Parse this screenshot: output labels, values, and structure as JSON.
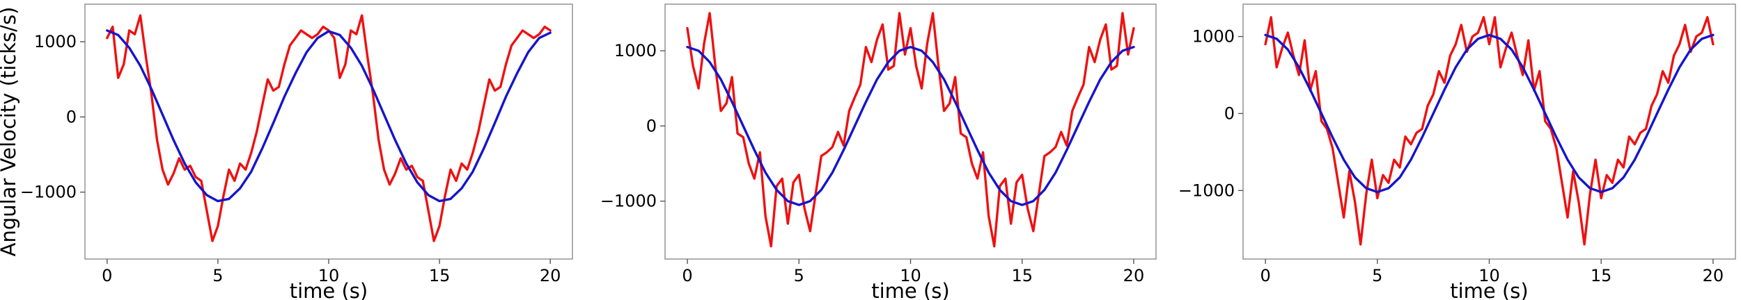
{
  "chart_data": [
    {
      "type": "line",
      "title": "",
      "xlabel": "time (s)",
      "ylabel": "Angular Velocity (ticks/s)",
      "xlim": [
        -1,
        21
      ],
      "ylim": [
        -1890,
        1500
      ],
      "xticks": [
        0,
        5,
        10,
        15,
        20
      ],
      "xtick_labels": [
        "0",
        "5",
        "10",
        "15",
        "20"
      ],
      "yticks": [
        1000,
        0,
        -1000
      ],
      "ytick_labels": [
        "1000",
        "0",
        "−1000"
      ],
      "grid": false,
      "series": [
        {
          "color": "#ee1111",
          "x": [
            0.0,
            0.25,
            0.5,
            0.75,
            1.0,
            1.25,
            1.5,
            1.75,
            2.0,
            2.25,
            2.5,
            2.75,
            3.0,
            3.25,
            3.5,
            3.75,
            4.0,
            4.25,
            4.5,
            4.75,
            5.0,
            5.25,
            5.5,
            5.75,
            6.0,
            6.25,
            6.5,
            6.75,
            7.0,
            7.25,
            7.5,
            7.75,
            8.0,
            8.25,
            8.5,
            8.75,
            9.0,
            9.25,
            9.5,
            9.75,
            10.0,
            10.25,
            10.5,
            10.75,
            11.0,
            11.25,
            11.5,
            11.75,
            12.0,
            12.25,
            12.5,
            12.75,
            13.0,
            13.25,
            13.5,
            13.75,
            14.0,
            14.25,
            14.5,
            14.75,
            15.0,
            15.25,
            15.5,
            15.75,
            16.0,
            16.25,
            16.5,
            16.75,
            17.0,
            17.25,
            17.5,
            17.75,
            18.0,
            18.25,
            18.5,
            18.75,
            19.0,
            19.25,
            19.5,
            19.75,
            20.0
          ],
          "y": [
            1050,
            1200,
            520,
            700,
            1150,
            1100,
            1350,
            800,
            300,
            -300,
            -700,
            -900,
            -750,
            -550,
            -700,
            -650,
            -800,
            -850,
            -1250,
            -1650,
            -1450,
            -1050,
            -700,
            -850,
            -620,
            -700,
            -480,
            -200,
            150,
            500,
            350,
            400,
            700,
            950,
            1050,
            1150,
            1100,
            1050,
            1100,
            1200,
            1150,
            1050,
            520,
            700,
            1150,
            1100,
            1350,
            800,
            300,
            -300,
            -700,
            -900,
            -750,
            -550,
            -700,
            -650,
            -800,
            -850,
            -1250,
            -1650,
            -1450,
            -1050,
            -700,
            -850,
            -620,
            -700,
            -480,
            -200,
            150,
            500,
            350,
            400,
            700,
            950,
            1050,
            1150,
            1100,
            1050,
            1100,
            1200,
            1150
          ]
        },
        {
          "color": "#1515cc",
          "x": [
            0.0,
            0.5,
            1.0,
            1.5,
            2.0,
            2.5,
            3.0,
            3.5,
            4.0,
            4.5,
            5.0,
            5.5,
            6.0,
            6.5,
            7.0,
            7.5,
            8.0,
            8.5,
            9.0,
            9.5,
            10.0,
            10.5,
            11.0,
            11.5,
            12.0,
            12.5,
            13.0,
            13.5,
            14.0,
            14.5,
            15.0,
            15.5,
            16.0,
            16.5,
            17.0,
            17.5,
            18.0,
            18.5,
            19.0,
            19.5,
            20.0
          ],
          "y": [
            1150,
            1090,
            920,
            680,
            370,
            30,
            -310,
            -620,
            -870,
            -1040,
            -1120,
            -1090,
            -950,
            -730,
            -420,
            -80,
            270,
            580,
            860,
            1050,
            1140,
            1090,
            920,
            680,
            370,
            30,
            -310,
            -620,
            -870,
            -1040,
            -1120,
            -1090,
            -950,
            -730,
            -420,
            -80,
            270,
            580,
            860,
            1050,
            1120
          ]
        }
      ]
    },
    {
      "type": "line",
      "title": "",
      "xlabel": "time (s)",
      "ylabel": "",
      "xlim": [
        -1,
        21
      ],
      "ylim": [
        -1770,
        1620
      ],
      "xticks": [
        0,
        5,
        10,
        15,
        20
      ],
      "xtick_labels": [
        "0",
        "5",
        "10",
        "15",
        "20"
      ],
      "yticks": [
        1000,
        0,
        -1000
      ],
      "ytick_labels": [
        "1000",
        "0",
        "−1000"
      ],
      "grid": false,
      "series": [
        {
          "color": "#ee1111",
          "x": [
            0.0,
            0.25,
            0.5,
            0.75,
            1.0,
            1.25,
            1.5,
            1.75,
            2.0,
            2.25,
            2.5,
            2.75,
            3.0,
            3.25,
            3.5,
            3.75,
            4.0,
            4.25,
            4.5,
            4.75,
            5.0,
            5.25,
            5.5,
            5.75,
            6.0,
            6.25,
            6.5,
            6.75,
            7.0,
            7.25,
            7.5,
            7.75,
            8.0,
            8.25,
            8.5,
            8.75,
            9.0,
            9.25,
            9.5,
            9.75,
            10.0,
            10.25,
            10.5,
            10.75,
            11.0,
            11.25,
            11.5,
            11.75,
            12.0,
            12.25,
            12.5,
            12.75,
            13.0,
            13.25,
            13.5,
            13.75,
            14.0,
            14.25,
            14.5,
            14.75,
            15.0,
            15.25,
            15.5,
            15.75,
            16.0,
            16.25,
            16.5,
            16.75,
            17.0,
            17.25,
            17.5,
            17.75,
            18.0,
            18.25,
            18.5,
            18.75,
            19.0,
            19.25,
            19.5,
            19.75,
            20.0
          ],
          "y": [
            1300,
            800,
            500,
            1100,
            1500,
            800,
            200,
            300,
            650,
            -100,
            -150,
            -500,
            -700,
            -350,
            -1200,
            -1600,
            -800,
            -700,
            -1300,
            -750,
            -650,
            -1100,
            -1400,
            -900,
            -400,
            -350,
            -280,
            -80,
            -260,
            200,
            380,
            550,
            1050,
            850,
            1150,
            1350,
            750,
            800,
            1500,
            950,
            1300,
            800,
            500,
            1100,
            1500,
            800,
            200,
            300,
            650,
            -100,
            -150,
            -500,
            -700,
            -350,
            -1200,
            -1600,
            -800,
            -700,
            -1300,
            -750,
            -650,
            -1100,
            -1400,
            -900,
            -400,
            -350,
            -280,
            -80,
            -260,
            200,
            380,
            550,
            1050,
            850,
            1150,
            1350,
            750,
            800,
            1500,
            950,
            1300
          ]
        },
        {
          "color": "#1515cc",
          "x": [
            0.0,
            0.5,
            1.0,
            1.5,
            2.0,
            2.5,
            3.0,
            3.5,
            4.0,
            4.5,
            5.0,
            5.5,
            6.0,
            6.5,
            7.0,
            7.5,
            8.0,
            8.5,
            9.0,
            9.5,
            10.0,
            10.5,
            11.0,
            11.5,
            12.0,
            12.5,
            13.0,
            13.5,
            14.0,
            14.5,
            15.0,
            15.5,
            16.0,
            16.5,
            17.0,
            17.5,
            18.0,
            18.5,
            19.0,
            19.5,
            20.0
          ],
          "y": [
            1050,
            1000,
            850,
            620,
            320,
            0,
            -320,
            -620,
            -850,
            -1000,
            -1050,
            -1000,
            -850,
            -620,
            -320,
            0,
            320,
            620,
            850,
            1000,
            1050,
            1000,
            850,
            620,
            320,
            0,
            -320,
            -620,
            -850,
            -1000,
            -1050,
            -1000,
            -850,
            -620,
            -320,
            0,
            320,
            620,
            850,
            1000,
            1050
          ]
        }
      ]
    },
    {
      "type": "line",
      "title": "",
      "xlabel": "time (s)",
      "ylabel": "",
      "xlim": [
        -1,
        21
      ],
      "ylim": [
        -1890,
        1420
      ],
      "xticks": [
        0,
        5,
        10,
        15,
        20
      ],
      "xtick_labels": [
        "0",
        "5",
        "10",
        "15",
        "20"
      ],
      "yticks": [
        1000,
        0,
        -1000
      ],
      "ytick_labels": [
        "1000",
        "0",
        "−1000"
      ],
      "grid": false,
      "series": [
        {
          "color": "#ee1111",
          "x": [
            0.0,
            0.25,
            0.5,
            0.75,
            1.0,
            1.25,
            1.5,
            1.75,
            2.0,
            2.25,
            2.5,
            2.75,
            3.0,
            3.25,
            3.5,
            3.75,
            4.0,
            4.25,
            4.5,
            4.75,
            5.0,
            5.25,
            5.5,
            5.75,
            6.0,
            6.25,
            6.5,
            6.75,
            7.0,
            7.25,
            7.5,
            7.75,
            8.0,
            8.25,
            8.5,
            8.75,
            9.0,
            9.25,
            9.5,
            9.75,
            10.0,
            10.25,
            10.5,
            10.75,
            11.0,
            11.25,
            11.5,
            11.75,
            12.0,
            12.25,
            12.5,
            12.75,
            13.0,
            13.25,
            13.5,
            13.75,
            14.0,
            14.25,
            14.5,
            14.75,
            15.0,
            15.25,
            15.5,
            15.75,
            16.0,
            16.25,
            16.5,
            16.75,
            17.0,
            17.25,
            17.5,
            17.75,
            18.0,
            18.25,
            18.5,
            18.75,
            19.0,
            19.25,
            19.5,
            19.75,
            20.0
          ],
          "y": [
            900,
            1250,
            600,
            850,
            1050,
            750,
            500,
            950,
            300,
            550,
            -100,
            -200,
            -450,
            -900,
            -1350,
            -750,
            -1150,
            -1700,
            -1050,
            -600,
            -1100,
            -800,
            -900,
            -600,
            -700,
            -300,
            -400,
            -250,
            -200,
            100,
            250,
            550,
            400,
            750,
            900,
            1150,
            800,
            1000,
            1050,
            1250,
            900,
            1250,
            600,
            850,
            1050,
            750,
            500,
            950,
            300,
            550,
            -100,
            -200,
            -450,
            -900,
            -1350,
            -750,
            -1150,
            -1700,
            -1050,
            -600,
            -1100,
            -800,
            -900,
            -600,
            -700,
            -300,
            -400,
            -250,
            -200,
            100,
            250,
            550,
            400,
            750,
            900,
            1150,
            800,
            1000,
            1050,
            1250,
            900
          ]
        },
        {
          "color": "#1515cc",
          "x": [
            0.0,
            0.5,
            1.0,
            1.5,
            2.0,
            2.5,
            3.0,
            3.5,
            4.0,
            4.5,
            5.0,
            5.5,
            6.0,
            6.5,
            7.0,
            7.5,
            8.0,
            8.5,
            9.0,
            9.5,
            10.0,
            10.5,
            11.0,
            11.5,
            12.0,
            12.5,
            13.0,
            13.5,
            14.0,
            14.5,
            15.0,
            15.5,
            16.0,
            16.5,
            17.0,
            17.5,
            18.0,
            18.5,
            19.0,
            19.5,
            20.0
          ],
          "y": [
            1020,
            970,
            830,
            600,
            310,
            0,
            -310,
            -600,
            -830,
            -970,
            -1020,
            -970,
            -830,
            -600,
            -310,
            0,
            310,
            600,
            830,
            970,
            1020,
            970,
            830,
            600,
            310,
            0,
            -310,
            -600,
            -830,
            -970,
            -1020,
            -970,
            -830,
            -600,
            -310,
            0,
            310,
            600,
            830,
            970,
            1020
          ]
        }
      ]
    }
  ]
}
